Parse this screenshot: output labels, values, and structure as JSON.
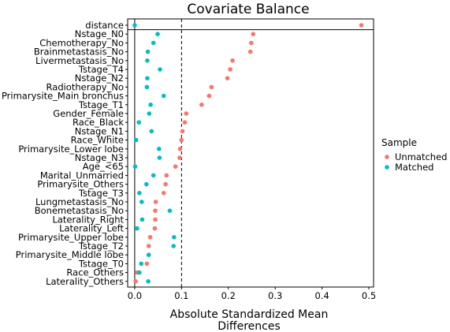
{
  "chart_data": {
    "type": "scatter",
    "title": "Covariate Balance",
    "xlabel_lines": [
      "Absolute Standardized Mean",
      "Differences"
    ],
    "xlim": [
      -0.015,
      0.51
    ],
    "xticks": [
      0.0,
      0.1,
      0.2,
      0.3,
      0.4,
      0.5
    ],
    "xtick_labels": [
      "0.0",
      "0.1",
      "0.2",
      "0.3",
      "0.4",
      "0.5"
    ],
    "threshold": 0.1,
    "separator_after": "distance",
    "categories": [
      "distance",
      "Nstage_N0",
      "Chemotherapy_No",
      "Brainmetastasis_No",
      "Livermetastasis_No",
      "Tstage_T4",
      "Nstage_N2",
      "Radiotherapy_No",
      "Primarysite_Main bronchus",
      "Tstage_T1",
      "Gender_Female",
      "Race_Black",
      "Nstage_N1",
      "Race_White",
      "Primarysite_Lower lobe",
      "Nstage_N3",
      "Age_<65",
      "Marital_Unmarried",
      "Primarysite_Others",
      "Tstage_T3",
      "Lungmetastasis_No",
      "Bonemetastasis_No",
      "Laterality_Right",
      "Laterality_Left",
      "Primarysite_Upper lobe",
      "Tstage_T2",
      "Primarysite_Middle lobe",
      "Tstage_T0",
      "Race_Others",
      "Laterality_Others"
    ],
    "legend": {
      "title": "Sample",
      "position": "right"
    },
    "series": [
      {
        "name": "Unmatched",
        "color": "#F8766D",
        "values": [
          0.484,
          0.253,
          0.249,
          0.247,
          0.209,
          0.204,
          0.198,
          0.164,
          0.159,
          0.143,
          0.11,
          0.107,
          0.102,
          0.1,
          0.097,
          0.096,
          0.087,
          0.068,
          0.066,
          0.062,
          0.045,
          0.044,
          0.044,
          0.043,
          0.033,
          0.03,
          0.03,
          0.026,
          0.005,
          0.002
        ]
      },
      {
        "name": "Matched",
        "color": "#00BFC4",
        "values": [
          0.0,
          0.049,
          0.04,
          0.028,
          0.027,
          0.054,
          0.027,
          0.026,
          0.062,
          0.034,
          0.031,
          0.009,
          0.036,
          0.003,
          0.052,
          0.053,
          0.001,
          0.04,
          0.025,
          0.01,
          0.015,
          0.075,
          0.016,
          0.005,
          0.084,
          0.083,
          0.03,
          0.014,
          0.01,
          0.029
        ]
      }
    ]
  }
}
